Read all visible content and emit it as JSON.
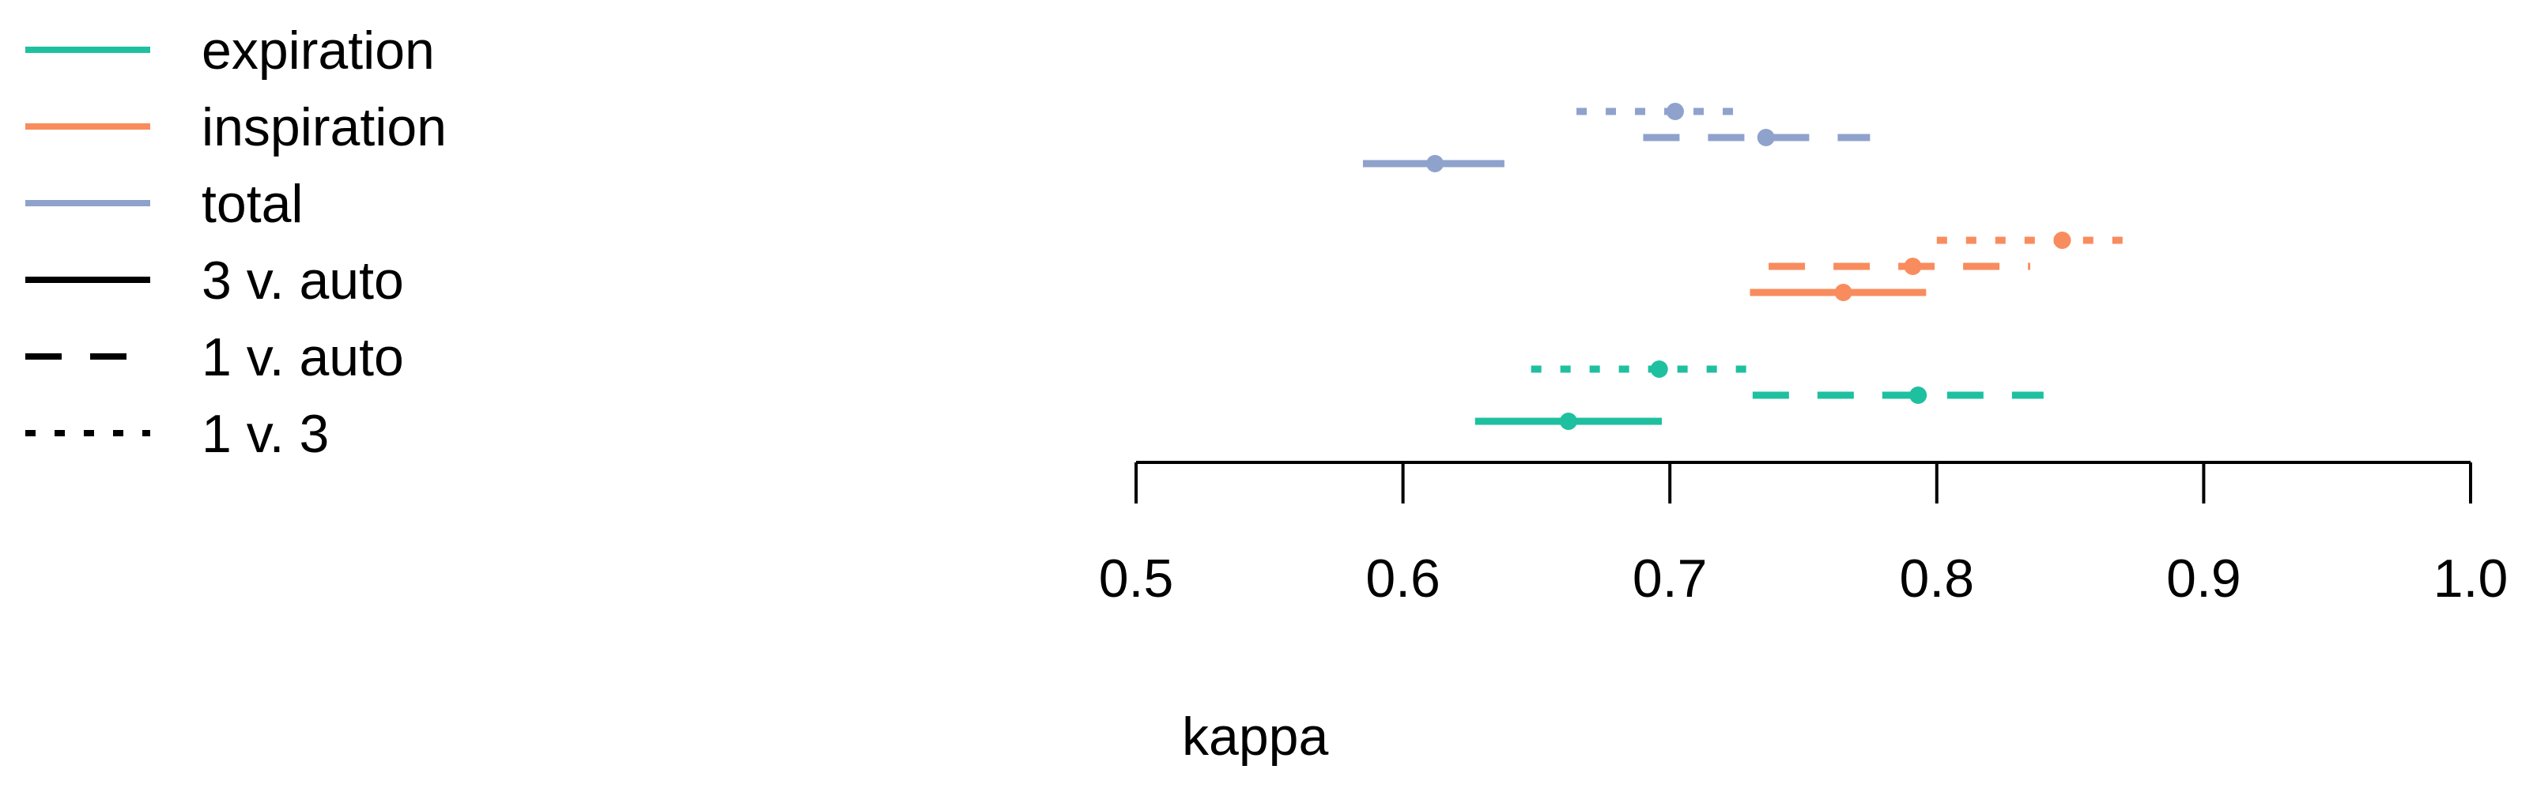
{
  "chart_data": {
    "type": "scatter",
    "title": "",
    "xlabel": "kappa",
    "ylabel": "",
    "xlim": [
      0.5,
      1.0
    ],
    "xticks": [
      0.5,
      0.6,
      0.7,
      0.8,
      0.9,
      1.0
    ],
    "xtick_labels": [
      "0.5",
      "0.6",
      "0.7",
      "0.8",
      "0.9",
      "1.0"
    ],
    "grid": false,
    "legend_position": "top-left",
    "groups": [
      {
        "name": "expiration",
        "color": "#1FC0A0"
      },
      {
        "name": "inspiration",
        "color": "#F98C5E"
      },
      {
        "name": "total",
        "color": "#8FA2CC"
      }
    ],
    "comparisons": [
      {
        "name": "3 v. auto",
        "line_style": "solid"
      },
      {
        "name": "1 v. auto",
        "line_style": "dashed"
      },
      {
        "name": "1 v. 3",
        "line_style": "dotted"
      }
    ],
    "series": [
      {
        "group": "expiration",
        "comparison": "3 v. auto",
        "estimate": 0.662,
        "lower": 0.627,
        "upper": 0.697
      },
      {
        "group": "expiration",
        "comparison": "1 v. auto",
        "estimate": 0.793,
        "lower": 0.731,
        "upper": 0.84
      },
      {
        "group": "expiration",
        "comparison": "1 v. 3",
        "estimate": 0.696,
        "lower": 0.648,
        "upper": 0.735
      },
      {
        "group": "inspiration",
        "comparison": "3 v. auto",
        "estimate": 0.765,
        "lower": 0.73,
        "upper": 0.796
      },
      {
        "group": "inspiration",
        "comparison": "1 v. auto",
        "estimate": 0.791,
        "lower": 0.737,
        "upper": 0.835
      },
      {
        "group": "inspiration",
        "comparison": "1 v. 3",
        "estimate": 0.847,
        "lower": 0.8,
        "upper": 0.875
      },
      {
        "group": "total",
        "comparison": "3 v. auto",
        "estimate": 0.612,
        "lower": 0.585,
        "upper": 0.638
      },
      {
        "group": "total",
        "comparison": "1 v. auto",
        "estimate": 0.736,
        "lower": 0.69,
        "upper": 0.775
      },
      {
        "group": "total",
        "comparison": "1 v. 3",
        "estimate": 0.702,
        "lower": 0.665,
        "upper": 0.725
      }
    ]
  }
}
